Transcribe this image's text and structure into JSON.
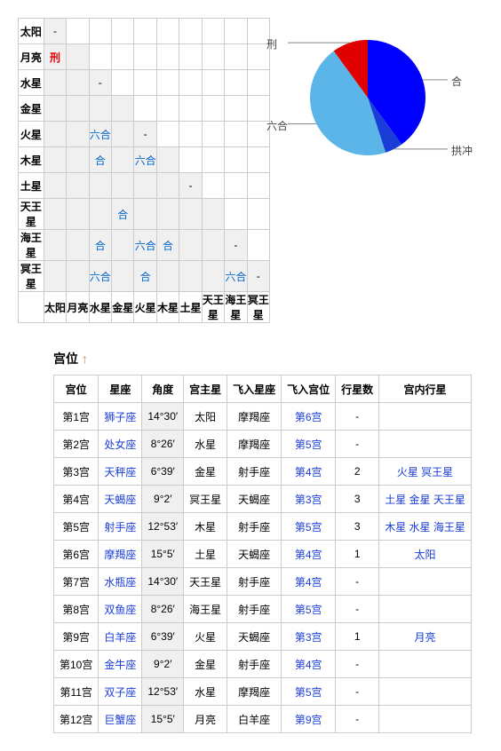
{
  "aspects": {
    "planets": [
      "太阳",
      "月亮",
      "水星",
      "金星",
      "火星",
      "木星",
      "土星",
      "天王星",
      "海王星",
      "冥王星"
    ],
    "grid": [
      [
        "-",
        "",
        "",
        "",
        "",
        "",
        "",
        "",
        "",
        ""
      ],
      [
        "刑",
        "",
        "",
        "",
        "",
        "",
        "",
        "",
        "",
        ""
      ],
      [
        "",
        "",
        "-",
        "",
        "",
        "",
        "",
        "",
        "",
        ""
      ],
      [
        "",
        "",
        "",
        "",
        "",
        "",
        "",
        "",
        "",
        ""
      ],
      [
        "",
        "",
        "六合",
        "",
        "-",
        "",
        "",
        "",
        "",
        ""
      ],
      [
        "",
        "",
        "合",
        "",
        "六合",
        "",
        "",
        "",
        "",
        ""
      ],
      [
        "",
        "",
        "",
        "",
        "",
        "",
        "-",
        "",
        "",
        ""
      ],
      [
        "",
        "",
        "",
        "合",
        "",
        "",
        "",
        "",
        "",
        ""
      ],
      [
        "",
        "",
        "合",
        "",
        "六合",
        "合",
        "",
        "",
        "-",
        ""
      ],
      [
        "",
        "",
        "六合",
        "",
        "合",
        "",
        "",
        "",
        "六合",
        "-"
      ]
    ]
  },
  "pie": {
    "slices": [
      {
        "label": "合",
        "value": 40,
        "color": "#0000ff"
      },
      {
        "label": "拱冲",
        "value": 5,
        "color": "#1a3dd6"
      },
      {
        "label": "六合",
        "value": 45,
        "color": "#5bb5e8"
      },
      {
        "label": "刑",
        "value": 10,
        "color": "#e00000"
      }
    ],
    "label_color": "#555",
    "line_color": "#888"
  },
  "section_title": "宫位",
  "house_headers": [
    "宫位",
    "星座",
    "角度",
    "宫主星",
    "飞入星座",
    "飞入宫位",
    "行星数",
    "宫内行星"
  ],
  "houses": [
    {
      "h": "第1宫",
      "sign": "狮子座",
      "deg": "14°30′",
      "ruler": "太阳",
      "rsign": "摩羯座",
      "rhouse": "第6宫",
      "count": "-",
      "in": ""
    },
    {
      "h": "第2宫",
      "sign": "处女座",
      "deg": "8°26′",
      "ruler": "水星",
      "rsign": "摩羯座",
      "rhouse": "第5宫",
      "count": "-",
      "in": ""
    },
    {
      "h": "第3宫",
      "sign": "天秤座",
      "deg": "6°39′",
      "ruler": "金星",
      "rsign": "射手座",
      "rhouse": "第4宫",
      "count": "2",
      "in": "火星 冥王星"
    },
    {
      "h": "第4宫",
      "sign": "天蝎座",
      "deg": "9°2′",
      "ruler": "冥王星",
      "rsign": "天蝎座",
      "rhouse": "第3宫",
      "count": "3",
      "in": "土星 金星 天王星"
    },
    {
      "h": "第5宫",
      "sign": "射手座",
      "deg": "12°53′",
      "ruler": "木星",
      "rsign": "射手座",
      "rhouse": "第5宫",
      "count": "3",
      "in": "木星 水星 海王星"
    },
    {
      "h": "第6宫",
      "sign": "摩羯座",
      "deg": "15°5′",
      "ruler": "土星",
      "rsign": "天蝎座",
      "rhouse": "第4宫",
      "count": "1",
      "in": "太阳"
    },
    {
      "h": "第7宫",
      "sign": "水瓶座",
      "deg": "14°30′",
      "ruler": "天王星",
      "rsign": "射手座",
      "rhouse": "第4宫",
      "count": "-",
      "in": ""
    },
    {
      "h": "第8宫",
      "sign": "双鱼座",
      "deg": "8°26′",
      "ruler": "海王星",
      "rsign": "射手座",
      "rhouse": "第5宫",
      "count": "-",
      "in": ""
    },
    {
      "h": "第9宫",
      "sign": "白羊座",
      "deg": "6°39′",
      "ruler": "火星",
      "rsign": "天蝎座",
      "rhouse": "第3宫",
      "count": "1",
      "in": "月亮"
    },
    {
      "h": "第10宫",
      "sign": "金牛座",
      "deg": "9°2′",
      "ruler": "金星",
      "rsign": "射手座",
      "rhouse": "第4宫",
      "count": "-",
      "in": ""
    },
    {
      "h": "第11宫",
      "sign": "双子座",
      "deg": "12°53′",
      "ruler": "水星",
      "rsign": "摩羯座",
      "rhouse": "第5宫",
      "count": "-",
      "in": ""
    },
    {
      "h": "第12宫",
      "sign": "巨蟹座",
      "deg": "15°5′",
      "ruler": "月亮",
      "rsign": "白羊座",
      "rhouse": "第9宫",
      "count": "-",
      "in": ""
    }
  ]
}
